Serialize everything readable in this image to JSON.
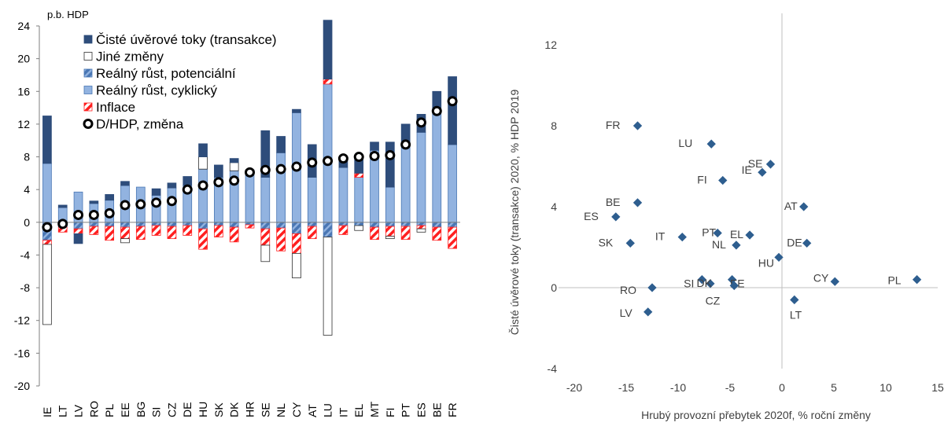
{
  "colors": {
    "credit": "#2E4D7B",
    "other": "#FFFFFF",
    "potential": "#4A77B4",
    "cyclical": "#92B3E0",
    "inflation": "#FF2020",
    "marker": "#2E5E8F",
    "axis": "#7F7F7F",
    "text": "#404040"
  },
  "chart_data": [
    {
      "type": "bar",
      "subtype": "stacked-bar-with-markers",
      "title": "",
      "ylabel": "p.b. HDP",
      "xlabel": "",
      "ylim": [
        -20,
        24
      ],
      "yticks": [
        -20,
        -16,
        -12,
        -8,
        -4,
        0,
        4,
        8,
        12,
        16,
        20,
        24
      ],
      "legend": "top-left",
      "legend_entries": [
        "Čisté úvěrové toky (transakce)",
        "Jiné změny",
        "Reálný růst, potenciální",
        "Reálný růst, cyklický",
        "Inflace",
        "D/HDP, změna"
      ],
      "categories": [
        "IE",
        "LT",
        "LV",
        "RO",
        "PL",
        "EE",
        "BG",
        "SI",
        "CZ",
        "DE",
        "HU",
        "SK",
        "DK",
        "HR",
        "SE",
        "NL",
        "CY",
        "AT",
        "LU",
        "IT",
        "EL",
        "MT",
        "FI",
        "PT",
        "ES",
        "BE",
        "FR"
      ],
      "series": [
        {
          "name": "Čisté úvěrové toky (transakce)",
          "key": "credit",
          "values": [
            5.8,
            0.3,
            -1.2,
            0.3,
            0.7,
            0.5,
            0.0,
            0.8,
            0.6,
            1.1,
            1.6,
            1.5,
            0.5,
            0.1,
            5.7,
            2.0,
            0.4,
            4.0,
            7.2,
            1.1,
            2.2,
            1.0,
            5.5,
            2.3,
            2.2,
            2.2,
            8.3
          ]
        },
        {
          "name": "Jiné změny",
          "key": "other",
          "values": [
            -9.8,
            0.0,
            0.0,
            0.0,
            0.0,
            -0.5,
            0.0,
            0.0,
            0.0,
            0.0,
            1.5,
            0.0,
            1.0,
            0.0,
            -2.0,
            0.0,
            -3.0,
            0.0,
            -12.0,
            0.0,
            -0.6,
            0.0,
            -0.3,
            0.0,
            -0.4,
            0.0,
            0.0
          ]
        },
        {
          "name": "Reálný růst, potenciální",
          "key": "potential",
          "values": [
            -2.2,
            -0.6,
            -0.8,
            -0.5,
            -0.5,
            -0.6,
            -0.5,
            -0.4,
            -0.5,
            -0.4,
            -0.8,
            -0.4,
            -0.6,
            -0.3,
            -0.8,
            -0.7,
            -1.4,
            -0.5,
            -1.8,
            -0.4,
            -0.4,
            -0.6,
            -0.5,
            -0.5,
            -0.4,
            -0.6,
            -0.6
          ]
        },
        {
          "name": "Reálný růst, cyklický",
          "key": "cyclical",
          "values": [
            7.2,
            1.8,
            3.7,
            2.3,
            2.7,
            4.5,
            4.3,
            3.3,
            4.2,
            4.5,
            6.5,
            5.5,
            6.3,
            6.3,
            5.5,
            8.5,
            13.4,
            5.5,
            16.9,
            6.7,
            5.5,
            8.8,
            4.3,
            9.7,
            11.0,
            13.8,
            9.5
          ]
        },
        {
          "name": "Inflace",
          "key": "inflation",
          "values": [
            -0.5,
            -0.6,
            -0.6,
            -1.0,
            -1.7,
            -1.4,
            -1.6,
            -1.2,
            -1.5,
            -1.2,
            -2.5,
            -1.4,
            -1.8,
            -0.4,
            -2.0,
            -2.8,
            -2.4,
            -1.5,
            0.6,
            -1.1,
            0.5,
            -1.5,
            -1.2,
            -1.6,
            -0.4,
            -1.6,
            -2.6
          ]
        },
        {
          "name": "D/HDP, změna",
          "key": "marker",
          "values": [
            -0.6,
            -0.2,
            0.9,
            0.9,
            1.1,
            2.1,
            2.2,
            2.4,
            2.6,
            4.0,
            4.5,
            4.9,
            5.1,
            6.1,
            6.4,
            6.5,
            6.8,
            7.3,
            7.5,
            7.8,
            8.0,
            8.1,
            8.2,
            9.5,
            12.2,
            13.6,
            14.8
          ]
        }
      ]
    },
    {
      "type": "scatter",
      "title": "",
      "xlabel": "Hrubý provozní přebytek 2020f, % roční změny",
      "ylabel": "Čisté úvěrové toky (transakce) 2020, % HDP 2019",
      "xlim": [
        -20,
        15
      ],
      "ylim": [
        -4,
        12
      ],
      "xticks": [
        -20,
        -15,
        -10,
        -5,
        0,
        5,
        10,
        15
      ],
      "yticks": [
        -4,
        0,
        4,
        8,
        12
      ],
      "points": [
        {
          "label": "FR",
          "x": -13.9,
          "y": 8.0
        },
        {
          "label": "LU",
          "x": -6.8,
          "y": 7.1
        },
        {
          "label": "SE",
          "x": -1.1,
          "y": 6.1
        },
        {
          "label": "IE",
          "x": -1.9,
          "y": 5.7
        },
        {
          "label": "FI",
          "x": -5.7,
          "y": 5.3
        },
        {
          "label": "BE",
          "x": -13.9,
          "y": 4.2
        },
        {
          "label": "ES",
          "x": -16.0,
          "y": 3.5
        },
        {
          "label": "AT",
          "x": 2.1,
          "y": 4.0
        },
        {
          "label": "SK",
          "x": -14.6,
          "y": 2.2
        },
        {
          "label": "IT",
          "x": -9.6,
          "y": 2.5
        },
        {
          "label": "PT",
          "x": -6.2,
          "y": 2.7
        },
        {
          "label": "EL",
          "x": -3.1,
          "y": 2.6
        },
        {
          "label": "NL",
          "x": -4.4,
          "y": 2.1
        },
        {
          "label": "DE",
          "x": 2.4,
          "y": 2.2
        },
        {
          "label": "HU",
          "x": -0.3,
          "y": 1.5
        },
        {
          "label": "CY",
          "x": 5.1,
          "y": 0.3
        },
        {
          "label": "PL",
          "x": 13.0,
          "y": 0.4
        },
        {
          "label": "RO",
          "x": -12.5,
          "y": 0.0
        },
        {
          "label": "SI",
          "x": -7.7,
          "y": 0.4
        },
        {
          "label": "DK",
          "x": -6.9,
          "y": 0.2
        },
        {
          "label": "EE",
          "x": -4.8,
          "y": 0.4
        },
        {
          "label": "CZ",
          "x": -4.6,
          "y": 0.1
        },
        {
          "label": "LT",
          "x": 1.2,
          "y": -0.6
        },
        {
          "label": "LV",
          "x": -12.9,
          "y": -1.2
        }
      ]
    }
  ]
}
